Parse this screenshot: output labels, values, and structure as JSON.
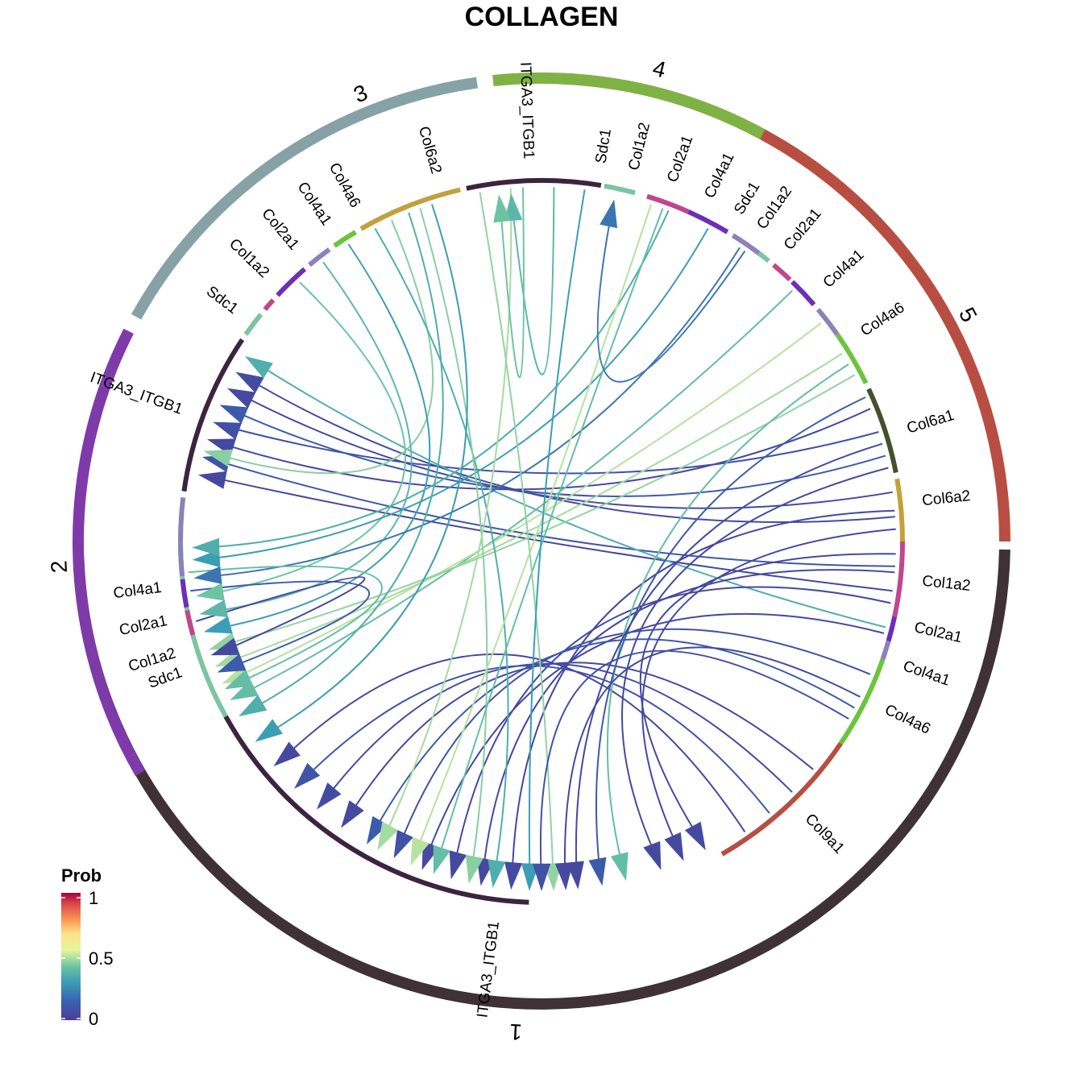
{
  "title": "COLLAGEN",
  "legend": {
    "title": "Prob",
    "ticks": [
      "1",
      "0.5",
      "0"
    ]
  },
  "colors": {
    "group_1": "#3e3236",
    "group_2": "#7f3aaa",
    "group_3": "#86a2a6",
    "group_4": "#7fb244",
    "group_5": "#b84e41",
    "Sdc1": "#7dc4a0",
    "ITGA3_ITGB1": "#3c243f",
    "Col1a2": "#c0468e",
    "Col2a1": "#6c2fb9",
    "Col4a1": "#8a82b8",
    "Col4a6": "#6cc43c",
    "Col6a1": "#45502c",
    "Col6a2": "#c2a13c",
    "Col9a1": "#b84e41"
  },
  "chart_data": {
    "type": "chord",
    "value_name": "Prob",
    "value_range": [
      0,
      1
    ],
    "groups": [
      {
        "name": "1",
        "sectors": [
          "Sdc1",
          "ITGA3_ITGB1",
          "Col9a1",
          "Col4a6",
          "Col4a1",
          "Col2a1",
          "Col1a2",
          "Col6a2",
          "Col6a1"
        ]
      },
      {
        "name": "5",
        "sectors": []
      },
      {
        "name": "4",
        "sectors": []
      },
      {
        "name": "3",
        "sectors": []
      },
      {
        "name": "2",
        "sectors": [
          "Col1a2",
          "Col2a1",
          "Col4a1",
          "ITGA3_ITGB1",
          "Sdc1",
          "Col1a2",
          "Col2a1",
          "Col4a1",
          "Col4a6",
          "Col6a2",
          "ITGA3_ITGB1",
          "Sdc1",
          "Col1a2",
          "Col2a1",
          "Col4a1",
          "Sdc1",
          "Col1a2",
          "Col2a1",
          "Col4a1",
          "Col4a6"
        ]
      }
    ],
    "sector_labels": [
      "Sdc1",
      "ITGA3_ITGB1",
      "Col9a1",
      "Col4a6",
      "Col4a1",
      "Col2a1",
      "Col1a2",
      "Col6a2",
      "Col6a1",
      "Col4a6",
      "Col4a1",
      "Col2a1",
      "Col1a2",
      "Sdc1",
      "Col4a1",
      "Col2a1",
      "Col1a2",
      "Sdc1",
      "ITGA3_ITGB1",
      "Col6a2",
      "Col4a6",
      "Col4a1",
      "Col2a1",
      "Col1a2",
      "Sdc1",
      "ITGA3_ITGB1",
      "Col4a1",
      "Col2a1",
      "Col1a2"
    ],
    "links": [
      {
        "from": "5:Col6a1",
        "to": "2:ITGA3_ITGB1",
        "prob": 0.05
      },
      {
        "from": "5:Col6a1",
        "to": "2:ITGA3_ITGB1",
        "prob": 0.08
      },
      {
        "from": "5:Col6a2",
        "to": "2:ITGA3_ITGB1",
        "prob": 0.12
      },
      {
        "from": "5:Col6a2",
        "to": "2:ITGA3_ITGB1",
        "prob": 0.05
      },
      {
        "from": "5:Col1a2",
        "to": "2:ITGA3_ITGB1",
        "prob": 0.06
      },
      {
        "from": "5:Col2a1",
        "to": "2:ITGA3_ITGB1",
        "prob": 0.1
      },
      {
        "from": "5:Col4a1",
        "to": "2:ITGA3_ITGB1",
        "prob": 0.04
      },
      {
        "from": "3:Col6a2",
        "to": "2:ITGA3_ITGB1",
        "prob": 0.35
      },
      {
        "from": "3:Col4a6",
        "to": "1:Sdc1",
        "prob": 0.45
      },
      {
        "from": "3:Col4a1",
        "to": "1:Sdc1",
        "prob": 0.4
      },
      {
        "from": "4:Col2a1",
        "to": "1:Sdc1",
        "prob": 0.5
      },
      {
        "from": "4:Col1a2",
        "to": "1:Sdc1",
        "prob": 0.48
      },
      {
        "from": "5:Col4a6",
        "to": "1:Sdc1",
        "prob": 0.46
      },
      {
        "from": "5:Col2a1",
        "to": "1:Sdc1",
        "prob": 0.3
      },
      {
        "from": "2:Col4a1",
        "to": "1:Sdc1",
        "prob": 0.38
      },
      {
        "from": "2:Col2a1",
        "to": "1:Sdc1",
        "prob": 0.42
      },
      {
        "from": "2:Col1a2",
        "to": "1:Sdc1",
        "prob": 0.2
      },
      {
        "from": "1:Col6a2",
        "to": "1:ITGA3_ITGB1",
        "prob": 0.3
      },
      {
        "from": "1:Col1a2",
        "to": "1:ITGA3_ITGB1",
        "prob": 0.35
      },
      {
        "from": "1:Col4a1",
        "to": "1:ITGA3_ITGB1",
        "prob": 0.4
      },
      {
        "from": "1:Col4a6",
        "to": "1:ITGA3_ITGB1",
        "prob": 0.12
      },
      {
        "from": "1:Col9a1",
        "to": "1:ITGA3_ITGB1",
        "prob": 0.05
      },
      {
        "from": "3:Col2a1",
        "to": "3:ITGA3_ITGB1",
        "prob": 0.05
      },
      {
        "from": "4:Col4a1",
        "to": "3:ITGA3_ITGB1",
        "prob": 0.05
      },
      {
        "from": "5:Col4a1",
        "to": "4:Sdc1",
        "prob": 0.05
      }
    ]
  }
}
